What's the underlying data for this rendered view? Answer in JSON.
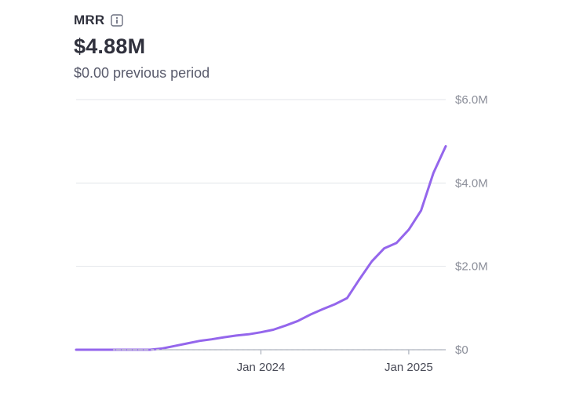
{
  "metric": {
    "title": "MRR",
    "info_icon": "info-icon",
    "value": "$4.88M",
    "comparison": "$0.00 previous period"
  },
  "colors": {
    "series": "#9466ec",
    "grid": "#e3e5ea",
    "baseline": "#aab0bb",
    "previous_period": "#c3c7cf"
  },
  "chart_data": {
    "type": "line",
    "title": "MRR",
    "xlabel": "",
    "ylabel": "",
    "x_ticks": [
      "Jan 2024",
      "Jan 2025"
    ],
    "y_ticks": [
      "$0",
      "$2.0M",
      "$4.0M",
      "$6.0M"
    ],
    "y_tick_values": [
      0,
      2000000,
      4000000,
      6000000
    ],
    "ylim": [
      0,
      6000000
    ],
    "x": [
      "2023-01",
      "2023-02",
      "2023-03",
      "2023-04",
      "2023-05",
      "2023-06",
      "2023-07",
      "2023-08",
      "2023-09",
      "2023-10",
      "2023-11",
      "2023-12",
      "2024-01",
      "2024-02",
      "2024-03",
      "2024-04",
      "2024-05",
      "2024-06",
      "2024-07",
      "2024-08",
      "2024-09",
      "2024-10",
      "2024-11",
      "2024-12",
      "2025-01",
      "2025-02",
      "2025-03",
      "2025-04"
    ],
    "series": [
      {
        "values": [
          0,
          0,
          0,
          0,
          30000,
          90000,
          150000,
          210000,
          250000,
          300000,
          340000,
          370000,
          420000,
          480000,
          580000,
          690000,
          840000,
          970000,
          1090000,
          1240000,
          1690000,
          2120000,
          2430000,
          2560000,
          2880000,
          3340000,
          4240000,
          4880000
        ]
      },
      {
        "values": [
          0,
          0,
          0,
          0,
          0,
          0,
          0,
          0,
          0,
          0,
          0,
          0,
          0,
          0,
          0,
          0,
          0,
          0,
          0,
          0,
          0,
          0,
          0,
          0,
          0,
          0,
          0,
          0
        ],
        "style": "dashed"
      }
    ],
    "grid": true,
    "legend": "none"
  }
}
